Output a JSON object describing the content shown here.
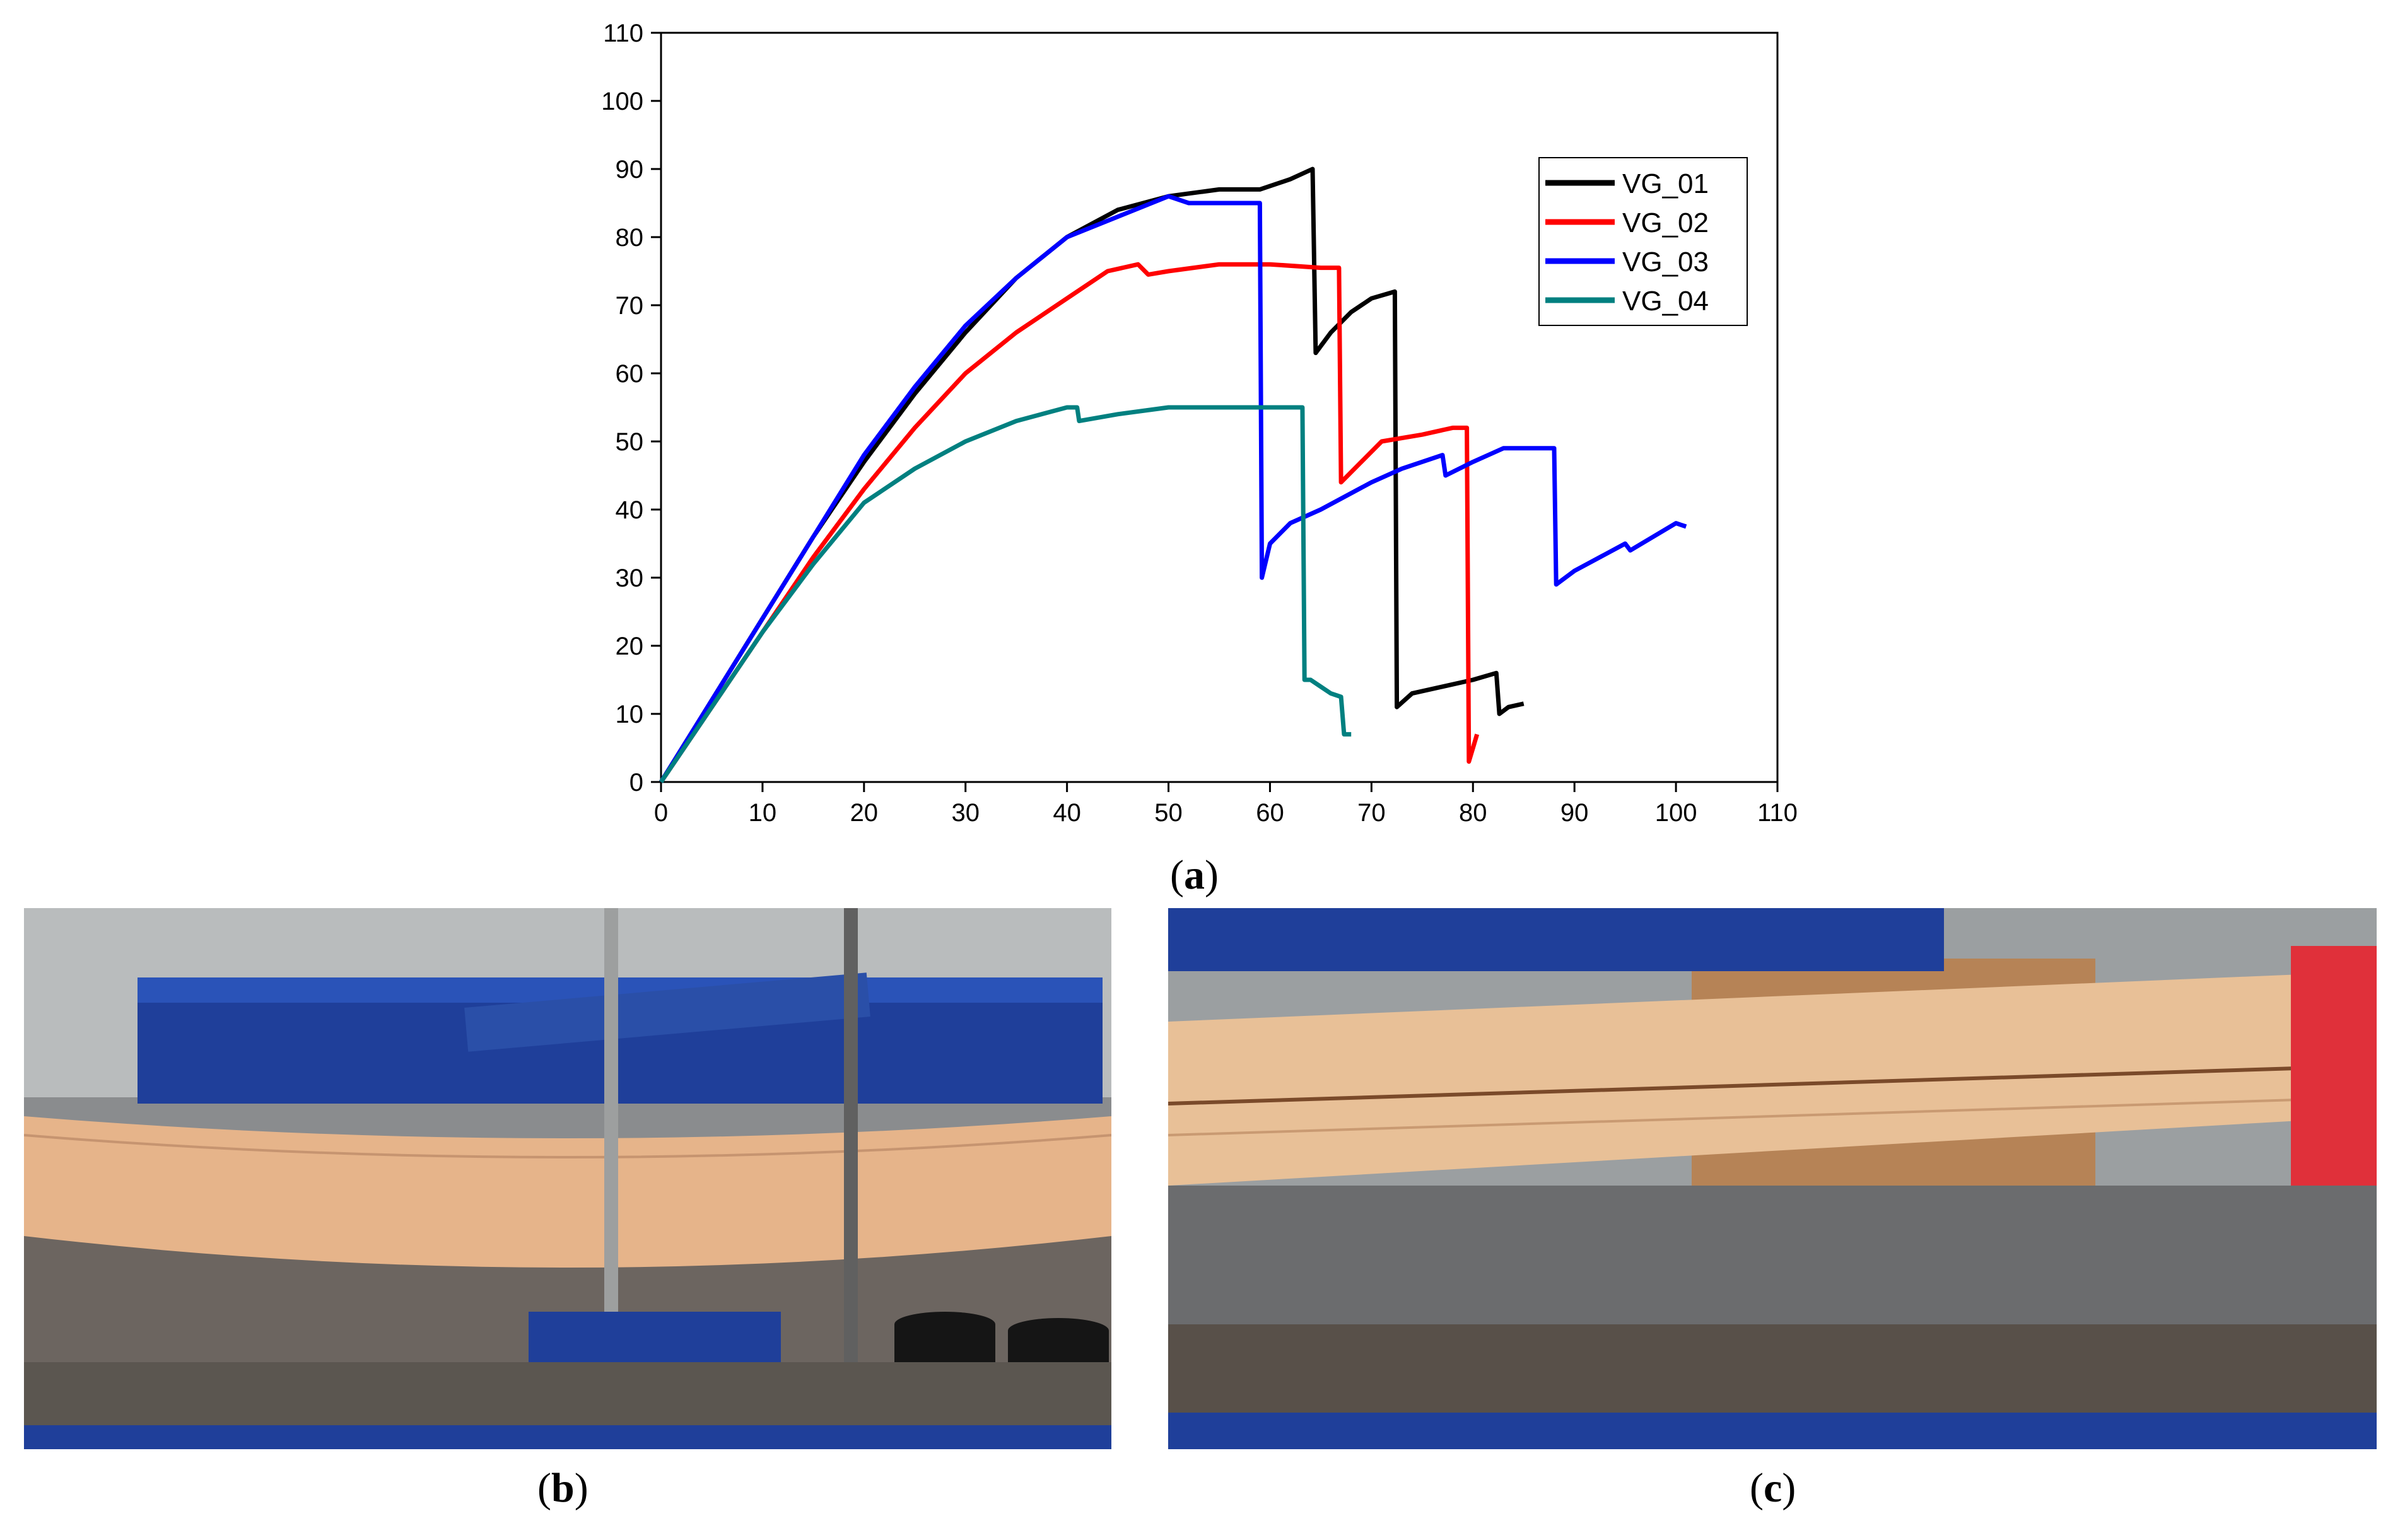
{
  "chart_data": {
    "type": "line",
    "title": "",
    "xlabel": "",
    "ylabel": "",
    "xlim": [
      0,
      110
    ],
    "ylim": [
      0,
      110
    ],
    "xticks": [
      "0",
      "10",
      "20",
      "30",
      "40",
      "50",
      "60",
      "70",
      "80",
      "90",
      "100",
      "110"
    ],
    "yticks": [
      "0",
      "10",
      "20",
      "30",
      "40",
      "50",
      "60",
      "70",
      "80",
      "90",
      "100",
      "110"
    ],
    "grid": false,
    "legend_position": "top-right",
    "series": [
      {
        "name": "VG_01",
        "color": "#000000",
        "points": [
          [
            0,
            0
          ],
          [
            5,
            12
          ],
          [
            10,
            24
          ],
          [
            15,
            36
          ],
          [
            20,
            47
          ],
          [
            25,
            57
          ],
          [
            30,
            66
          ],
          [
            35,
            74
          ],
          [
            40,
            80
          ],
          [
            45,
            84
          ],
          [
            50,
            86
          ],
          [
            55,
            87
          ],
          [
            59,
            87
          ],
          [
            62,
            88.5
          ],
          [
            64.2,
            90
          ],
          [
            64.5,
            63
          ],
          [
            66,
            66
          ],
          [
            68,
            69
          ],
          [
            70,
            71
          ],
          [
            72.3,
            72
          ],
          [
            72.5,
            11
          ],
          [
            74,
            13
          ],
          [
            77,
            14
          ],
          [
            80,
            15
          ],
          [
            82.3,
            16
          ],
          [
            82.6,
            10
          ],
          [
            83.5,
            11
          ],
          [
            85,
            11.5
          ]
        ]
      },
      {
        "name": "VG_02",
        "color": "#ff0000",
        "points": [
          [
            0,
            0
          ],
          [
            5,
            11
          ],
          [
            10,
            22
          ],
          [
            15,
            33
          ],
          [
            20,
            43
          ],
          [
            25,
            52
          ],
          [
            30,
            60
          ],
          [
            35,
            66
          ],
          [
            40,
            71
          ],
          [
            44,
            75
          ],
          [
            47,
            76
          ],
          [
            48,
            74.5
          ],
          [
            50,
            75
          ],
          [
            55,
            76
          ],
          [
            60,
            76
          ],
          [
            65,
            75.5
          ],
          [
            66.8,
            75.5
          ],
          [
            67,
            44
          ],
          [
            69,
            47
          ],
          [
            71,
            50
          ],
          [
            75,
            51
          ],
          [
            78,
            52
          ],
          [
            79.4,
            52
          ],
          [
            79.6,
            3
          ],
          [
            80,
            5
          ],
          [
            80.4,
            7
          ]
        ]
      },
      {
        "name": "VG_03",
        "color": "#0000ff",
        "points": [
          [
            0,
            0
          ],
          [
            5,
            12
          ],
          [
            10,
            24
          ],
          [
            15,
            36
          ],
          [
            20,
            48
          ],
          [
            25,
            58
          ],
          [
            30,
            67
          ],
          [
            35,
            74
          ],
          [
            40,
            80
          ],
          [
            45,
            83
          ],
          [
            50,
            86
          ],
          [
            52,
            85
          ],
          [
            55,
            85
          ],
          [
            59,
            85
          ],
          [
            59.2,
            30
          ],
          [
            60,
            35
          ],
          [
            62,
            38
          ],
          [
            65,
            40
          ],
          [
            70,
            44
          ],
          [
            73,
            46
          ],
          [
            77,
            48
          ],
          [
            77.3,
            45
          ],
          [
            80,
            47
          ],
          [
            83,
            49
          ],
          [
            88,
            49
          ],
          [
            88.2,
            29
          ],
          [
            90,
            31
          ],
          [
            95,
            35
          ],
          [
            95.5,
            34
          ],
          [
            100,
            38
          ],
          [
            101,
            37.5
          ]
        ]
      },
      {
        "name": "VG_04",
        "color": "#008080",
        "points": [
          [
            0,
            0
          ],
          [
            5,
            11
          ],
          [
            10,
            22
          ],
          [
            15,
            32
          ],
          [
            20,
            41
          ],
          [
            25,
            46
          ],
          [
            30,
            50
          ],
          [
            35,
            53
          ],
          [
            40,
            55
          ],
          [
            41,
            55
          ],
          [
            41.2,
            53
          ],
          [
            45,
            54
          ],
          [
            50,
            55
          ],
          [
            55,
            55
          ],
          [
            60,
            55
          ],
          [
            63.2,
            55
          ],
          [
            63.4,
            15
          ],
          [
            64,
            15
          ],
          [
            65,
            14
          ],
          [
            66,
            13
          ],
          [
            67,
            12.5
          ],
          [
            67.3,
            7
          ],
          [
            68,
            7
          ]
        ]
      }
    ]
  },
  "panels": {
    "a": {
      "open": "(",
      "letter": "a",
      "close": ")"
    },
    "b": {
      "open": "(",
      "letter": "b",
      "close": ")"
    },
    "c": {
      "open": "(",
      "letter": "c",
      "close": ")"
    }
  }
}
